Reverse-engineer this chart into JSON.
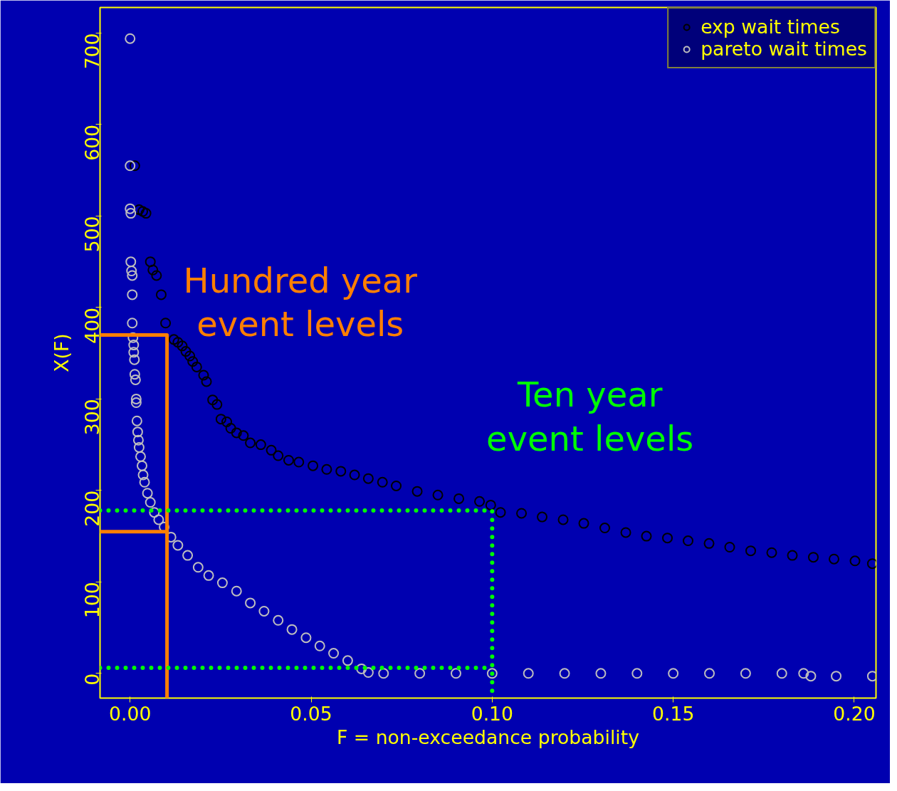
{
  "chart_data": {
    "type": "scatter",
    "xlabel": "F = non-exceedance probability",
    "ylabel": "X(F)",
    "xlim": [
      -0.0083,
      0.206
    ],
    "ylim": [
      -27,
      728
    ],
    "xticks": [
      {
        "value": 0,
        "label": "0.00"
      },
      {
        "value": 0.05,
        "label": "0.05"
      },
      {
        "value": 0.1,
        "label": "0.10"
      },
      {
        "value": 0.15,
        "label": "0.15"
      },
      {
        "value": 0.2,
        "label": "0.20"
      }
    ],
    "yticks": [
      0,
      100,
      200,
      300,
      400,
      500,
      600,
      700
    ],
    "grid": false,
    "legend": "top right",
    "marker": "circle",
    "annotations": [
      "Hundred year\nevent levels",
      "Ten year\nevent levels"
    ],
    "series": [
      {
        "name": "exp wait times",
        "color": "#000000",
        "x": [
          0.0013,
          0.0025,
          0.0035,
          0.0044,
          0.0056,
          0.0063,
          0.0073,
          0.0086,
          0.0098,
          0.0121,
          0.0132,
          0.0144,
          0.0154,
          0.0165,
          0.0173,
          0.0184,
          0.0203,
          0.0211,
          0.0228,
          0.024,
          0.0251,
          0.0267,
          0.0278,
          0.0294,
          0.0313,
          0.0332,
          0.0361,
          0.039,
          0.0409,
          0.0438,
          0.0466,
          0.0505,
          0.0543,
          0.0582,
          0.062,
          0.0658,
          0.0697,
          0.0735,
          0.0793,
          0.085,
          0.0908,
          0.0965,
          0.0996,
          0.1023,
          0.1081,
          0.1138,
          0.1196,
          0.1253,
          0.1311,
          0.1369,
          0.1426,
          0.1484,
          0.1541,
          0.1599,
          0.1656,
          0.1714,
          0.1772,
          0.1829,
          0.1887,
          0.1944,
          0.2002,
          0.205
        ],
        "values": [
          555,
          507,
          505,
          503,
          450,
          441,
          435,
          414,
          383,
          365,
          362,
          358,
          352,
          347,
          341,
          335,
          326,
          319,
          299,
          294,
          278,
          275,
          268,
          263,
          260,
          252,
          250,
          244,
          238,
          233,
          231,
          227,
          223,
          221,
          217,
          213,
          209,
          205,
          199,
          195,
          191,
          188,
          184,
          176,
          175,
          171,
          168,
          164,
          159,
          154,
          150,
          148,
          145,
          142,
          138,
          134,
          132,
          129,
          127,
          125,
          123,
          120
        ]
      },
      {
        "name": "pareto wait times",
        "color": "#bebebe",
        "x": [
          0,
          0,
          0,
          0.0002,
          0.0002,
          0.0004,
          0.0006,
          0.0006,
          0.0006,
          0.0008,
          0.001,
          0.001,
          0.0012,
          0.0013,
          0.0015,
          0.0017,
          0.0017,
          0.0019,
          0.0021,
          0.0023,
          0.0025,
          0.0029,
          0.0033,
          0.0036,
          0.004,
          0.0048,
          0.0056,
          0.0067,
          0.0079,
          0.0094,
          0.0113,
          0.0132,
          0.0159,
          0.0188,
          0.0217,
          0.0255,
          0.0294,
          0.0332,
          0.037,
          0.0409,
          0.0447,
          0.0486,
          0.0524,
          0.0562,
          0.0601,
          0.0639,
          0.0658,
          0.07,
          0.08,
          0.09,
          0.1,
          0.11,
          0.12,
          0.13,
          0.14,
          0.15,
          0.16,
          0.17,
          0.18,
          0.186,
          0.188,
          0.195,
          0.205
        ],
        "values": [
          694,
          555,
          508,
          503,
          450,
          440,
          435,
          414,
          383,
          367,
          359,
          351,
          343,
          327,
          321,
          300,
          296,
          276,
          264,
          255,
          247,
          237,
          227,
          217,
          209,
          197,
          187,
          176,
          168,
          160,
          149,
          140,
          129,
          116,
          107,
          99,
          90,
          77,
          68,
          58,
          48,
          39,
          30,
          22,
          14,
          5,
          1,
          0,
          0,
          0,
          0,
          0,
          0,
          0,
          0,
          0,
          0,
          0,
          0,
          0,
          -3,
          -3,
          -3
        ]
      },
      {
        "type": "line",
        "marker": "none",
        "color": "#ff7f00",
        "line_style": "solid",
        "x": [
          -0.0083,
          0.0102,
          0.0102
        ],
        "values": [
          370,
          370,
          -27
        ]
      },
      {
        "type": "line",
        "marker": "none",
        "color": "#ff7f00",
        "line_style": "solid",
        "x": [
          -0.0083,
          0.0102
        ],
        "values": [
          155,
          155
        ]
      },
      {
        "type": "line",
        "marker": "none",
        "color": "#00ff00",
        "line_style": "dotted",
        "x": [
          -0.0083,
          0.1,
          0.1
        ],
        "values": [
          178,
          178,
          -27
        ]
      },
      {
        "type": "line",
        "marker": "none",
        "color": "#00ff00",
        "line_style": "dotted",
        "x": [
          -0.0083,
          0.1
        ],
        "values": [
          6,
          6
        ]
      }
    ]
  }
}
